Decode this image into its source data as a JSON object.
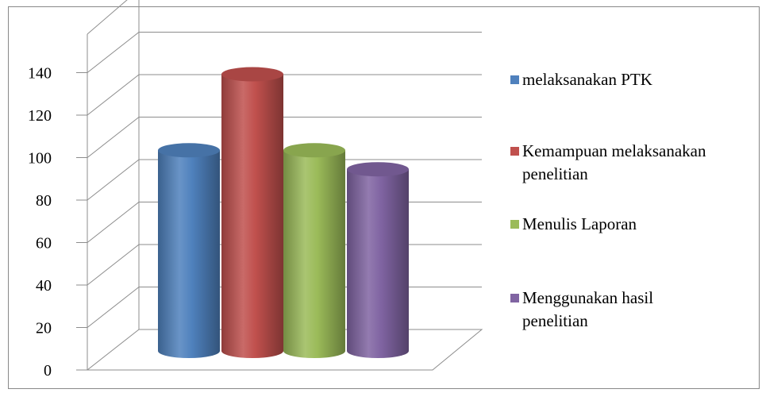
{
  "chart_data": {
    "type": "bar",
    "style": "3d-cylinder",
    "title": "",
    "xlabel": "",
    "ylabel": "",
    "ylim": [
      0,
      140
    ],
    "y_ticks": [
      "0",
      "20",
      "40",
      "60",
      "80",
      "100",
      "120",
      "140"
    ],
    "grid": true,
    "legend_position": "right",
    "series": [
      {
        "name": "melaksanakan PTK",
        "legend_lines": [
          "melaksanakan PTK"
        ],
        "value": 95,
        "color": "#4F81BD"
      },
      {
        "name": "Kemampuan melaksanakan penelitian",
        "legend_lines": [
          "Kemampuan melaksanakan",
          "penelitian"
        ],
        "value": 131,
        "color": "#C0504D"
      },
      {
        "name": "Menulis Laporan",
        "legend_lines": [
          "Menulis Laporan"
        ],
        "value": 95,
        "color": "#9BBB59"
      },
      {
        "name": "Menggunakan hasil penelitian",
        "legend_lines": [
          "Menggunakan hasil",
          "penelitian"
        ],
        "value": 86,
        "color": "#8064A2"
      }
    ]
  }
}
